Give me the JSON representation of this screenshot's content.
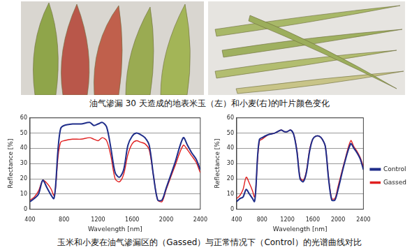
{
  "captions": {
    "top": "油气渗漏 30 天造成的地表米玉（左）和小麦(右)的叶片颜色变化",
    "bottom": "玉米和小麦在油气渗漏区的（Gassed）与正常情况下（Control）的光谱曲线对比"
  },
  "chart_data": [
    {
      "type": "line",
      "x_label": "Wavelength [nm]",
      "y_label": "Reflectance [%]",
      "x": [
        400,
        450,
        500,
        550,
        600,
        650,
        680,
        700,
        730,
        760,
        800,
        900,
        1000,
        1100,
        1150,
        1200,
        1250,
        1300,
        1350,
        1400,
        1450,
        1500,
        1550,
        1600,
        1650,
        1700,
        1750,
        1800,
        1850,
        1900,
        1950,
        2000,
        2100,
        2200,
        2250,
        2300,
        2350,
        2400
      ],
      "series": [
        {
          "name": "Control",
          "color": "#1f2d8a",
          "values": [
            5,
            7,
            10,
            19,
            14,
            9,
            7,
            15,
            40,
            53,
            55,
            56,
            56,
            57,
            55,
            56,
            57,
            54,
            40,
            24,
            21,
            26,
            42,
            48,
            50,
            49,
            47,
            42,
            22,
            6,
            6,
            14,
            30,
            47,
            42,
            37,
            33,
            26
          ]
        },
        {
          "name": "Gassed",
          "color": "#e02020",
          "values": [
            6,
            8,
            12,
            19,
            17,
            13,
            9,
            14,
            35,
            44,
            45,
            46,
            46,
            47,
            46,
            45,
            47,
            45,
            35,
            20,
            18,
            23,
            36,
            43,
            45,
            44,
            43,
            39,
            22,
            6,
            5,
            13,
            28,
            42,
            39,
            35,
            31,
            24
          ]
        }
      ],
      "xlim": [
        400,
        2400
      ],
      "xticks": [
        400,
        800,
        1200,
        1600,
        2000,
        2400
      ],
      "ylim": [
        0,
        60
      ],
      "yticks": [
        0,
        10,
        20,
        30,
        40,
        50,
        60
      ],
      "grid": true
    },
    {
      "type": "line",
      "x_label": "Wavelength [nm]",
      "y_label": "Reflectance [%]",
      "x": [
        400,
        450,
        500,
        550,
        600,
        650,
        680,
        700,
        730,
        760,
        800,
        900,
        1000,
        1100,
        1150,
        1200,
        1250,
        1300,
        1350,
        1400,
        1450,
        1500,
        1550,
        1600,
        1650,
        1700,
        1750,
        1800,
        1850,
        1900,
        1950,
        2000,
        2100,
        2200,
        2250,
        2300,
        2350,
        2400
      ],
      "series": [
        {
          "name": "Control",
          "color": "#1f2d8a",
          "values": [
            5,
            7,
            8,
            13,
            10,
            7,
            5,
            12,
            35,
            46,
            47,
            49,
            50,
            52,
            51,
            51,
            52,
            49,
            38,
            20,
            18,
            24,
            38,
            46,
            48,
            48,
            46,
            41,
            20,
            6,
            6,
            13,
            30,
            43,
            40,
            37,
            33,
            26
          ]
        },
        {
          "name": "Gassed",
          "color": "#e02020",
          "values": [
            7,
            9,
            13,
            21,
            17,
            12,
            8,
            13,
            33,
            45,
            46,
            49,
            50,
            52,
            51,
            51,
            52,
            49,
            39,
            21,
            19,
            25,
            39,
            46,
            48,
            48,
            46,
            41,
            21,
            7,
            7,
            15,
            31,
            45,
            41,
            38,
            34,
            28
          ]
        }
      ],
      "xlim": [
        400,
        2400
      ],
      "xticks": [
        400,
        800,
        1200,
        1600,
        2000,
        2400
      ],
      "ylim": [
        0,
        60
      ],
      "yticks": [
        0,
        10,
        20,
        30,
        40,
        50,
        60
      ],
      "grid": true,
      "legend": "right"
    }
  ]
}
